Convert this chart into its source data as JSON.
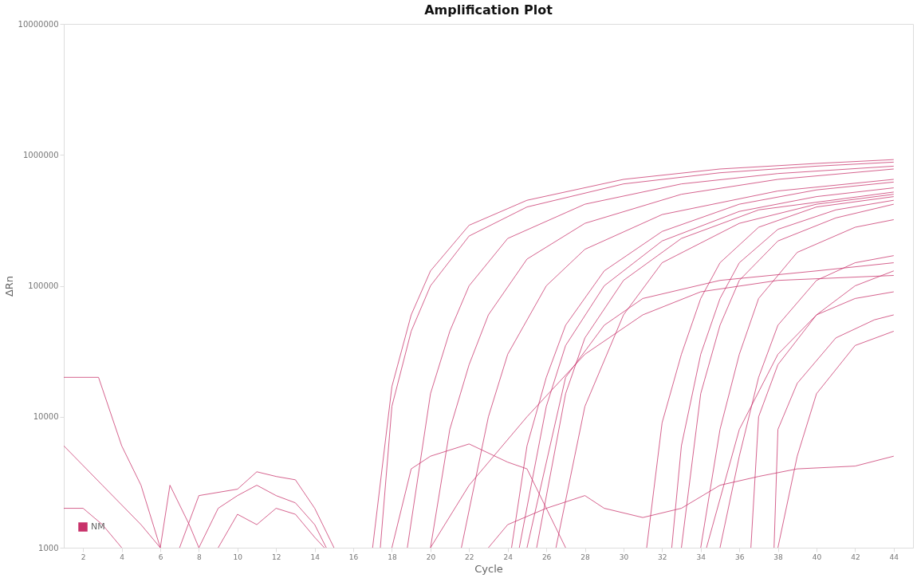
{
  "chart_data": {
    "type": "line",
    "title": "Amplification Plot",
    "xlabel": "Cycle",
    "ylabel": "ΔRn",
    "xlim": [
      1,
      45
    ],
    "xticks": [
      2,
      4,
      6,
      8,
      10,
      12,
      14,
      16,
      18,
      20,
      22,
      24,
      26,
      28,
      30,
      32,
      34,
      36,
      38,
      40,
      42,
      44
    ],
    "ylim": [
      1000,
      10000000
    ],
    "yticks": [
      1000,
      10000,
      100000,
      1000000,
      10000000
    ],
    "log": "y",
    "grid": false,
    "legend": "bottom left",
    "marker": "none",
    "line_style": "solid",
    "series": [
      {
        "name": "NM",
        "color": "#c8326a",
        "x": [
          17,
          18,
          19,
          20,
          22,
          25,
          30,
          35,
          40,
          44
        ],
        "values": [
          1000,
          17000,
          60000,
          130000,
          290000,
          450000,
          650000,
          780000,
          860000,
          920000
        ]
      },
      {
        "color": "#c8326a",
        "x": [
          17.4,
          18,
          19,
          20,
          22,
          25,
          30,
          35,
          40,
          44
        ],
        "values": [
          1000,
          12000,
          45000,
          100000,
          240000,
          400000,
          600000,
          730000,
          820000,
          880000
        ]
      },
      {
        "color": "#c8326a",
        "x": [
          18.8,
          20,
          21,
          22,
          24,
          28,
          33,
          38,
          44
        ],
        "values": [
          1000,
          15000,
          45000,
          100000,
          230000,
          420000,
          600000,
          720000,
          820000
        ]
      },
      {
        "color": "#c8326a",
        "x": [
          20,
          21,
          22,
          23,
          25,
          28,
          33,
          38,
          44
        ],
        "values": [
          1000,
          8000,
          25000,
          60000,
          160000,
          300000,
          500000,
          650000,
          780000
        ]
      },
      {
        "color": "#c8326a",
        "x": [
          21.6,
          23,
          24,
          26,
          28,
          32,
          38,
          44
        ],
        "values": [
          1000,
          10000,
          30000,
          100000,
          190000,
          350000,
          530000,
          650000
        ]
      },
      {
        "color": "#c8326a",
        "x": [
          24.2,
          25,
          26,
          27,
          29,
          32,
          36,
          40,
          44
        ],
        "values": [
          1000,
          6000,
          20000,
          50000,
          130000,
          260000,
          420000,
          540000,
          620000
        ]
      },
      {
        "color": "#c8326a",
        "x": [
          24.6,
          26,
          27,
          29,
          32,
          36,
          40,
          44
        ],
        "values": [
          1000,
          12000,
          35000,
          100000,
          220000,
          370000,
          480000,
          560000
        ]
      },
      {
        "color": "#c8326a",
        "x": [
          25.5,
          27,
          28,
          30,
          33,
          37,
          44
        ],
        "values": [
          1000,
          15000,
          40000,
          110000,
          230000,
          380000,
          520000
        ]
      },
      {
        "color": "#c8326a",
        "x": [
          26.5,
          28,
          30,
          32,
          36,
          40,
          44
        ],
        "values": [
          1000,
          12000,
          60000,
          150000,
          300000,
          420000,
          500000
        ]
      },
      {
        "color": "#c8326a",
        "x": [
          25,
          27,
          29,
          31,
          35,
          40,
          44
        ],
        "values": [
          1000,
          20000,
          50000,
          80000,
          110000,
          130000,
          150000
        ]
      },
      {
        "color": "#c8326a",
        "x": [
          20,
          22,
          25,
          28,
          31,
          34,
          38,
          44
        ],
        "values": [
          1000,
          3000,
          10000,
          30000,
          60000,
          90000,
          110000,
          120000
        ]
      },
      {
        "color": "#c8326a",
        "x": [
          31.2,
          32,
          33,
          34,
          35,
          37,
          40,
          44
        ],
        "values": [
          1000,
          9000,
          30000,
          80000,
          150000,
          280000,
          400000,
          480000
        ]
      },
      {
        "color": "#c8326a",
        "x": [
          32.5,
          33,
          34,
          35,
          36,
          38,
          41,
          44
        ],
        "values": [
          1000,
          6000,
          30000,
          80000,
          150000,
          270000,
          380000,
          450000
        ]
      },
      {
        "color": "#c8326a",
        "x": [
          33,
          34,
          35,
          36,
          38,
          41,
          44
        ],
        "values": [
          1000,
          15000,
          50000,
          110000,
          220000,
          330000,
          420000
        ]
      },
      {
        "color": "#c8326a",
        "x": [
          34,
          35,
          36,
          37,
          39,
          42,
          44
        ],
        "values": [
          1000,
          8000,
          30000,
          80000,
          180000,
          280000,
          320000
        ]
      },
      {
        "color": "#c8326a",
        "x": [
          35,
          36,
          37,
          38,
          40,
          42,
          44
        ],
        "values": [
          1000,
          5000,
          20000,
          50000,
          110000,
          150000,
          170000
        ]
      },
      {
        "color": "#c8326a",
        "x": [
          36.6,
          37,
          38,
          40,
          42,
          44
        ],
        "values": [
          1000,
          10000,
          25000,
          60000,
          100000,
          130000
        ]
      },
      {
        "color": "#c8326a",
        "x": [
          34.3,
          36,
          38,
          40,
          42,
          44
        ],
        "values": [
          1000,
          8000,
          30000,
          60000,
          80000,
          90000
        ]
      },
      {
        "color": "#c8326a",
        "x": [
          37.8,
          38,
          39,
          41,
          43,
          44
        ],
        "values": [
          1000,
          8000,
          18000,
          40000,
          55000,
          60000
        ]
      },
      {
        "color": "#c8326a",
        "x": [
          38,
          39,
          40,
          42,
          44
        ],
        "values": [
          1000,
          5000,
          15000,
          35000,
          45000
        ]
      },
      {
        "color": "#c8326a",
        "x": [
          18,
          19,
          20,
          22,
          24,
          25,
          26,
          27
        ],
        "values": [
          1000,
          4000,
          5000,
          6200,
          4500,
          4000,
          2000,
          1000
        ]
      },
      {
        "color": "#c8326a",
        "x": [
          23,
          24,
          26,
          28,
          29,
          31,
          33,
          35,
          37,
          39,
          42,
          44
        ],
        "values": [
          1000,
          1500,
          2000,
          2500,
          2000,
          1700,
          2000,
          3000,
          3500,
          4000,
          4200,
          5000
        ]
      },
      {
        "color": "#c8326a",
        "x": [
          1,
          2.8,
          4,
          5,
          6
        ],
        "values": [
          20000,
          20000,
          6000,
          3000,
          1000
        ]
      },
      {
        "color": "#c8326a",
        "x": [
          1,
          3,
          5,
          6
        ],
        "values": [
          6000,
          3000,
          1500,
          1000
        ]
      },
      {
        "color": "#c8326a",
        "x": [
          1,
          2,
          3,
          4
        ],
        "values": [
          2000,
          2000,
          1500,
          1000
        ]
      },
      {
        "color": "#c8326a",
        "x": [
          7,
          8,
          10,
          11,
          12,
          13,
          14,
          15
        ],
        "values": [
          1000,
          2500,
          2800,
          3800,
          3500,
          3300,
          2000,
          1000
        ]
      },
      {
        "color": "#c8326a",
        "x": [
          8,
          9,
          10,
          11,
          12,
          13,
          14,
          14.6
        ],
        "values": [
          1000,
          2000,
          2500,
          3000,
          2500,
          2200,
          1500,
          1000
        ]
      },
      {
        "color": "#c8326a",
        "x": [
          9,
          10,
          11,
          12,
          13,
          14,
          14.5
        ],
        "values": [
          1000,
          1800,
          1500,
          2000,
          1800,
          1200,
          1000
        ]
      },
      {
        "color": "#c8326a",
        "x": [
          6,
          6.5,
          7.5,
          8
        ],
        "values": [
          1000,
          3000,
          1500,
          1000
        ]
      }
    ]
  }
}
